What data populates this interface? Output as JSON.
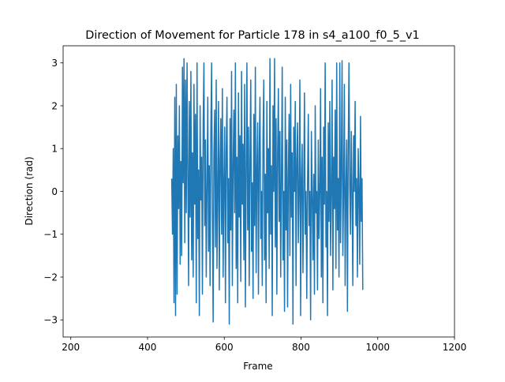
{
  "chart_data": {
    "type": "line",
    "title": "Direction of Movement for Particle 178 in s4_a100_f0_5_v1",
    "xlabel": "Frame",
    "ylabel": "Direction (rad)",
    "xlim": [
      180,
      1200
    ],
    "ylim": [
      -3.4,
      3.4
    ],
    "xticks": [
      200,
      400,
      600,
      800,
      1000,
      1200
    ],
    "yticks": [
      -3,
      -2,
      -1,
      0,
      1,
      2,
      3
    ],
    "grid": false,
    "legend": "none",
    "series": [
      {
        "color": "#1f77b4",
        "points": [
          [
            463,
            0.3
          ],
          [
            465,
            -1.0
          ],
          [
            467,
            1.0
          ],
          [
            469,
            -2.6
          ],
          [
            471,
            2.2
          ],
          [
            473,
            -2.9
          ],
          [
            475,
            2.5
          ],
          [
            477,
            -2.4
          ],
          [
            479,
            1.3
          ],
          [
            481,
            -0.4
          ],
          [
            483,
            2.0
          ],
          [
            485,
            -1.7
          ],
          [
            487,
            0.7
          ],
          [
            489,
            -1.5
          ],
          [
            491,
            2.9
          ],
          [
            493,
            0.2
          ],
          [
            495,
            3.1
          ],
          [
            497,
            -1.2
          ],
          [
            499,
            2.6
          ],
          [
            501,
            -0.5
          ],
          [
            503,
            3.0
          ],
          [
            505,
            0.4
          ],
          [
            507,
            -2.2
          ],
          [
            509,
            2.1
          ],
          [
            511,
            -0.6
          ],
          [
            513,
            2.8
          ],
          [
            515,
            -1.6
          ],
          [
            517,
            0.9
          ],
          [
            519,
            -2.0
          ],
          [
            521,
            2.5
          ],
          [
            523,
            -0.3
          ],
          [
            525,
            1.8
          ],
          [
            527,
            -2.6
          ],
          [
            529,
            3.0
          ],
          [
            531,
            -1.1
          ],
          [
            533,
            0.5
          ],
          [
            535,
            -2.9
          ],
          [
            537,
            2.0
          ],
          [
            539,
            -0.2
          ],
          [
            541,
            0.8
          ],
          [
            543,
            -2.4
          ],
          [
            545,
            1.6
          ],
          [
            547,
            3.0
          ],
          [
            549,
            -0.8
          ],
          [
            551,
            1.2
          ],
          [
            553,
            -2.0
          ],
          [
            555,
            0.1
          ],
          [
            557,
            2.2
          ],
          [
            559,
            -1.4
          ],
          [
            561,
            0.6
          ],
          [
            563,
            -2.2
          ],
          [
            565,
            1.4
          ],
          [
            567,
            3.0
          ],
          [
            569,
            -0.4
          ],
          [
            571,
            -3.05
          ],
          [
            573,
            0.9
          ],
          [
            575,
            1.9
          ],
          [
            577,
            -1.3
          ],
          [
            579,
            2.6
          ],
          [
            581,
            -1.8
          ],
          [
            583,
            0.0
          ],
          [
            585,
            2.1
          ],
          [
            587,
            -2.3
          ],
          [
            589,
            0.7
          ],
          [
            591,
            1.7
          ],
          [
            593,
            -1.0
          ],
          [
            595,
            2.4
          ],
          [
            597,
            -2.0
          ],
          [
            599,
            0.2
          ],
          [
            601,
            1.5
          ],
          [
            603,
            -2.6
          ],
          [
            605,
            0.9
          ],
          [
            607,
            2.2
          ],
          [
            609,
            -1.2
          ],
          [
            611,
            0.3
          ],
          [
            613,
            -3.1
          ],
          [
            615,
            1.7
          ],
          [
            617,
            -0.9
          ],
          [
            619,
            2.8
          ],
          [
            621,
            -2.2
          ],
          [
            623,
            0.6
          ],
          [
            625,
            1.9
          ],
          [
            627,
            -0.5
          ],
          [
            629,
            3.0
          ],
          [
            631,
            -1.8
          ],
          [
            633,
            0.8
          ],
          [
            635,
            -2.6
          ],
          [
            637,
            2.3
          ],
          [
            639,
            -0.6
          ],
          [
            641,
            1.3
          ],
          [
            643,
            -2.1
          ],
          [
            645,
            2.8
          ],
          [
            647,
            -0.3
          ],
          [
            649,
            1.1
          ],
          [
            651,
            -1.6
          ],
          [
            653,
            2.5
          ],
          [
            655,
            -2.7
          ],
          [
            657,
            0.4
          ],
          [
            659,
            3.0
          ],
          [
            661,
            -0.9
          ],
          [
            663,
            1.5
          ],
          [
            665,
            -2.2
          ],
          [
            667,
            0.7
          ],
          [
            669,
            2.6
          ],
          [
            671,
            -1.4
          ],
          [
            673,
            0.2
          ],
          [
            675,
            -2.5
          ],
          [
            677,
            1.8
          ],
          [
            679,
            -0.8
          ],
          [
            681,
            2.9
          ],
          [
            683,
            -1.9
          ],
          [
            685,
            0.5
          ],
          [
            687,
            1.6
          ],
          [
            689,
            -2.4
          ],
          [
            691,
            0.9
          ],
          [
            693,
            2.2
          ],
          [
            695,
            -1.1
          ],
          [
            697,
            0.0
          ],
          [
            699,
            -2.2
          ],
          [
            701,
            1.3
          ],
          [
            703,
            2.6
          ],
          [
            705,
            -1.6
          ],
          [
            707,
            0.4
          ],
          [
            709,
            -2.6
          ],
          [
            711,
            2.1
          ],
          [
            713,
            -0.5
          ],
          [
            715,
            1.0
          ],
          [
            717,
            -1.8
          ],
          [
            719,
            3.1
          ],
          [
            721,
            -1.0
          ],
          [
            723,
            0.6
          ],
          [
            725,
            -2.9
          ],
          [
            727,
            2.0
          ],
          [
            729,
            0.0
          ],
          [
            731,
            3.1
          ],
          [
            733,
            -1.3
          ],
          [
            735,
            1.7
          ],
          [
            737,
            -2.4
          ],
          [
            739,
            0.9
          ],
          [
            741,
            2.4
          ],
          [
            743,
            -0.7
          ],
          [
            745,
            1.4
          ],
          [
            747,
            -2.0
          ],
          [
            749,
            0.3
          ],
          [
            751,
            2.9
          ],
          [
            753,
            -1.6
          ],
          [
            755,
            0.0
          ],
          [
            757,
            -2.8
          ],
          [
            759,
            2.2
          ],
          [
            761,
            -0.9
          ],
          [
            763,
            1.2
          ],
          [
            765,
            -2.7
          ],
          [
            767,
            0.4
          ],
          [
            769,
            1.8
          ],
          [
            771,
            -1.5
          ],
          [
            773,
            2.5
          ],
          [
            775,
            -0.6
          ],
          [
            777,
            0.9
          ],
          [
            779,
            -3.1
          ],
          [
            781,
            1.5
          ],
          [
            783,
            0.0
          ],
          [
            785,
            2.1
          ],
          [
            787,
            -2.2
          ],
          [
            789,
            0.7
          ],
          [
            791,
            1.6
          ],
          [
            793,
            -1.2
          ],
          [
            795,
            0.0
          ],
          [
            797,
            2.6
          ],
          [
            799,
            -2.9
          ],
          [
            801,
            0.3
          ],
          [
            803,
            1.1
          ],
          [
            805,
            -1.9
          ],
          [
            807,
            0.0
          ],
          [
            809,
            2.3
          ],
          [
            811,
            -1.0
          ],
          [
            813,
            0.0
          ],
          [
            815,
            -2.5
          ],
          [
            817,
            0.2
          ],
          [
            819,
            1.8
          ],
          [
            821,
            -0.8
          ],
          [
            823,
            0.0
          ],
          [
            825,
            -3.0
          ],
          [
            827,
            1.4
          ],
          [
            829,
            0.0
          ],
          [
            831,
            -1.6
          ],
          [
            833,
            0.4
          ],
          [
            835,
            -2.4
          ],
          [
            837,
            2.0
          ],
          [
            839,
            -0.5
          ],
          [
            841,
            0.0
          ],
          [
            843,
            -2.3
          ],
          [
            845,
            1.2
          ],
          [
            847,
            -1.1
          ],
          [
            849,
            0.0
          ],
          [
            851,
            2.4
          ],
          [
            853,
            -2.0
          ],
          [
            855,
            0.8
          ],
          [
            857,
            -2.6
          ],
          [
            859,
            1.5
          ],
          [
            861,
            -0.3
          ],
          [
            863,
            3.0
          ],
          [
            865,
            -1.3
          ],
          [
            867,
            0.0
          ],
          [
            869,
            -2.9
          ],
          [
            871,
            1.6
          ],
          [
            873,
            -0.7
          ],
          [
            875,
            2.1
          ],
          [
            877,
            -1.5
          ],
          [
            879,
            0.0
          ],
          [
            881,
            2.6
          ],
          [
            883,
            -2.3
          ],
          [
            885,
            0.8
          ],
          [
            887,
            -0.4
          ],
          [
            889,
            1.9
          ],
          [
            891,
            -1.8
          ],
          [
            893,
            3.0
          ],
          [
            895,
            -0.9
          ],
          [
            897,
            0.3
          ],
          [
            899,
            -2.0
          ],
          [
            901,
            3.0
          ],
          [
            903,
            -1.2
          ],
          [
            905,
            0.5
          ],
          [
            907,
            3.05
          ],
          [
            909,
            -1.5
          ],
          [
            911,
            0.0
          ],
          [
            913,
            2.5
          ],
          [
            915,
            -2.2
          ],
          [
            917,
            0.0
          ],
          [
            919,
            1.2
          ],
          [
            921,
            -2.8
          ],
          [
            923,
            0.9
          ],
          [
            925,
            3.0
          ],
          [
            927,
            0.1
          ],
          [
            929,
            -1.0
          ],
          [
            931,
            1.4
          ],
          [
            933,
            0.0
          ],
          [
            935,
            -2.2
          ],
          [
            937,
            1.3
          ],
          [
            939,
            0.0
          ],
          [
            941,
            2.1
          ],
          [
            943,
            -0.8
          ],
          [
            945,
            0.3
          ],
          [
            947,
            -2.0
          ],
          [
            949,
            1.0
          ],
          [
            951,
            0.0
          ],
          [
            953,
            -1.7
          ],
          [
            955,
            1.75
          ],
          [
            957,
            -0.7
          ],
          [
            959,
            0.3
          ],
          [
            961,
            -2.3
          ]
        ]
      }
    ]
  }
}
